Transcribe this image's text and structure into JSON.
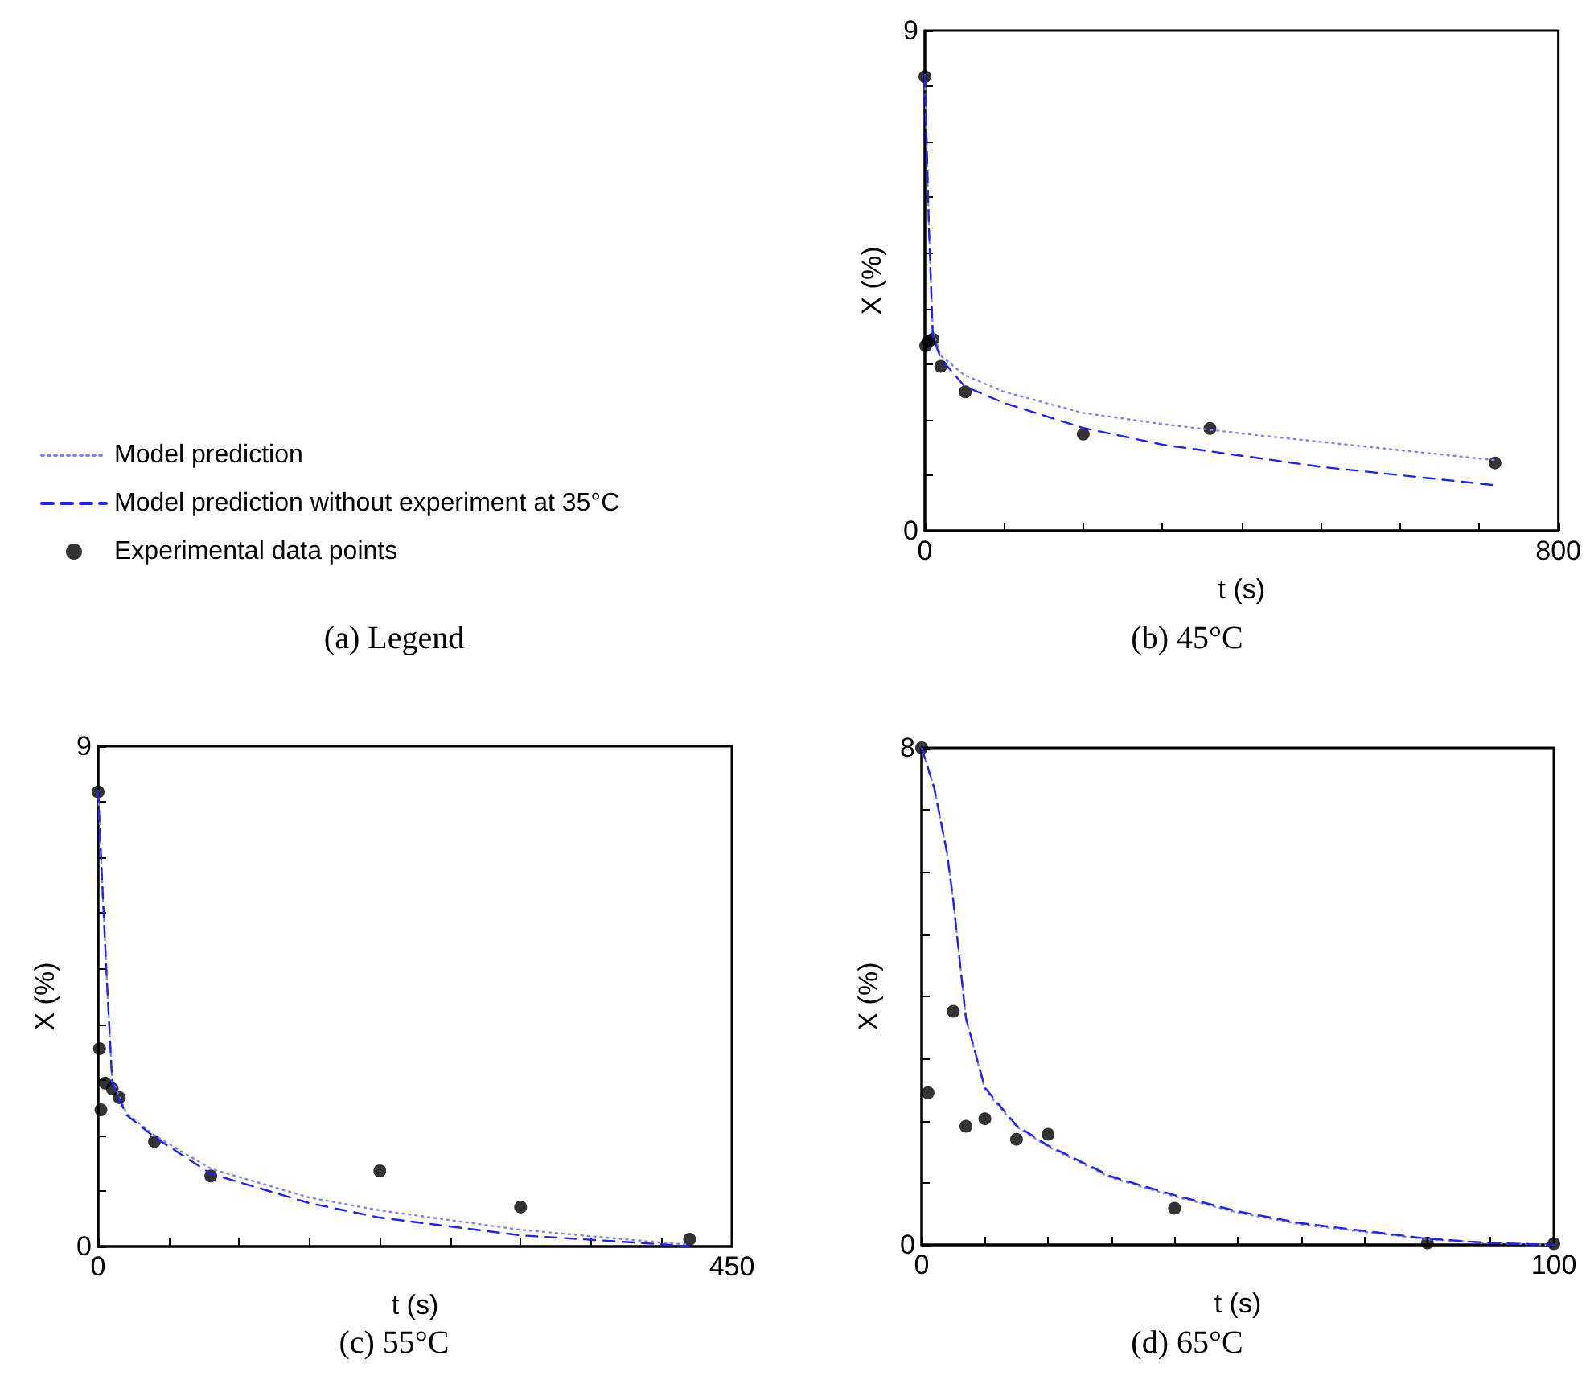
{
  "chart_data": [
    {
      "type": "other",
      "title": "(a) Legend",
      "legend": "left",
      "series": [
        {
          "name": "Model prediction",
          "type": "line",
          "color": "#8080ff",
          "line_style": "dotted",
          "marker": "none"
        },
        {
          "name": "Model prediction without experiment at 35°C",
          "type": "line",
          "color": "#2020ff",
          "line_style": "dashed",
          "marker": "none"
        },
        {
          "name": "Experimental data points",
          "type": "scatter",
          "color": "#000000",
          "marker": "circle"
        }
      ]
    },
    {
      "type": "line",
      "title": "(b) 45°C",
      "xlabel": "t (s)",
      "ylabel": "X (%)",
      "xlim": [
        0,
        800
      ],
      "ylim": [
        0,
        9
      ],
      "grid": false,
      "legend": false,
      "xticks": [
        0,
        {
          "value": 100,
          "label": null
        },
        {
          "value": 200,
          "label": null
        },
        {
          "value": 300,
          "label": null
        },
        {
          "value": 400,
          "label": null
        },
        {
          "value": 500,
          "label": null
        },
        {
          "value": 600,
          "label": null
        },
        {
          "value": 700,
          "label": null
        },
        800
      ],
      "yticks": [
        0,
        {
          "value": 1,
          "label": null
        },
        {
          "value": 2,
          "label": null
        },
        {
          "value": 3,
          "label": null
        },
        {
          "value": 4,
          "label": null
        },
        {
          "value": 5,
          "label": null
        },
        {
          "value": 6,
          "label": null
        },
        {
          "value": 7,
          "label": null
        },
        {
          "value": 8,
          "label": null
        },
        9
      ],
      "series": [
        {
          "type": "line",
          "color": "#8080ff",
          "line_style": "dotted",
          "marker": "none",
          "x": [
            0,
            5,
            10,
            20,
            50,
            100,
            200,
            300,
            400,
            500,
            600,
            720
          ],
          "values": [
            8.2,
            5.5,
            3.6,
            3.15,
            2.8,
            2.5,
            2.12,
            1.92,
            1.75,
            1.6,
            1.45,
            1.27
          ]
        },
        {
          "type": "line",
          "color": "#2020ff",
          "line_style": "dashed",
          "marker": "none",
          "x": [
            0,
            5,
            10,
            20,
            50,
            100,
            200,
            300,
            400,
            500,
            600,
            720
          ],
          "values": [
            8.2,
            5.5,
            3.5,
            3.1,
            2.6,
            2.3,
            1.85,
            1.55,
            1.35,
            1.15,
            1.0,
            0.82
          ]
        },
        {
          "type": "scatter",
          "color": "#000000",
          "marker": "circle",
          "x": [
            0,
            1,
            5,
            10,
            20,
            51,
            200,
            360,
            720
          ],
          "values": [
            8.17,
            3.33,
            3.41,
            3.45,
            2.96,
            2.5,
            1.74,
            1.84,
            1.22
          ]
        }
      ]
    },
    {
      "type": "line",
      "title": "(c) 55°C",
      "xlabel": "t (s)",
      "ylabel": "X (%)",
      "xlim": [
        0,
        450
      ],
      "ylim": [
        0,
        9
      ],
      "grid": false,
      "legend": false,
      "xticks": [
        0,
        {
          "value": 50,
          "label": null
        },
        {
          "value": 100,
          "label": null
        },
        {
          "value": 150,
          "label": null
        },
        {
          "value": 200,
          "label": null
        },
        {
          "value": 250,
          "label": null
        },
        {
          "value": 300,
          "label": null
        },
        {
          "value": 350,
          "label": null
        },
        {
          "value": 400,
          "label": null
        },
        450
      ],
      "yticks": [
        0,
        {
          "value": 1,
          "label": null
        },
        {
          "value": 2,
          "label": null
        },
        {
          "value": 3,
          "label": null
        },
        {
          "value": 4,
          "label": null
        },
        {
          "value": 5,
          "label": null
        },
        {
          "value": 6,
          "label": null
        },
        {
          "value": 7,
          "label": null
        },
        {
          "value": 8,
          "label": null
        },
        9
      ],
      "series": [
        {
          "type": "line",
          "color": "#8080ff",
          "line_style": "dotted",
          "marker": "none",
          "x": [
            0,
            3,
            6,
            10,
            20,
            40,
            80,
            150,
            200,
            300,
            400,
            420
          ],
          "values": [
            8.2,
            6.5,
            4.9,
            3.0,
            2.4,
            2.0,
            1.4,
            0.88,
            0.65,
            0.3,
            0.07,
            0.03
          ]
        },
        {
          "type": "line",
          "color": "#2020ff",
          "line_style": "dashed",
          "marker": "none",
          "x": [
            0,
            3,
            6,
            10,
            20,
            40,
            80,
            150,
            200,
            300,
            400,
            420
          ],
          "values": [
            8.2,
            6.5,
            4.9,
            2.95,
            2.37,
            1.97,
            1.31,
            0.78,
            0.52,
            0.2,
            0.04,
            0.0
          ]
        },
        {
          "type": "scatter",
          "color": "#000000",
          "marker": "circle",
          "x": [
            0,
            1,
            2,
            5,
            10,
            15,
            40,
            80,
            200,
            300,
            420
          ],
          "values": [
            8.18,
            3.56,
            2.46,
            2.94,
            2.84,
            2.68,
            1.89,
            1.27,
            1.36,
            0.71,
            0.13
          ]
        }
      ]
    },
    {
      "type": "line",
      "title": "(d) 65°C",
      "xlabel": "t (s)",
      "ylabel": "X (%)",
      "xlim": [
        0,
        100
      ],
      "ylim": [
        0,
        8
      ],
      "grid": false,
      "legend": false,
      "xticks": [
        0,
        {
          "value": 10,
          "label": null
        },
        {
          "value": 20,
          "label": null
        },
        {
          "value": 30,
          "label": null
        },
        {
          "value": 40,
          "label": null
        },
        {
          "value": 50,
          "label": null
        },
        {
          "value": 60,
          "label": null
        },
        {
          "value": 70,
          "label": null
        },
        {
          "value": 80,
          "label": null
        },
        {
          "value": 90,
          "label": null
        },
        100
      ],
      "yticks": [
        0,
        {
          "value": 1,
          "label": null
        },
        {
          "value": 2,
          "label": null
        },
        {
          "value": 3,
          "label": null
        },
        {
          "value": 4,
          "label": null
        },
        {
          "value": 5,
          "label": null
        },
        {
          "value": 6,
          "label": null
        },
        {
          "value": 7,
          "label": null
        },
        8
      ],
      "series": [
        {
          "type": "line",
          "color": "#8080ff",
          "line_style": "dotted",
          "marker": "none",
          "x": [
            0,
            2,
            4,
            5,
            7,
            10,
            15,
            20,
            30,
            40,
            50,
            60,
            80,
            90,
            100
          ],
          "values": [
            8.0,
            7.35,
            6.32,
            5.54,
            3.65,
            2.5,
            1.9,
            1.58,
            1.08,
            0.78,
            0.52,
            0.33,
            0.09,
            0.03,
            0.0
          ]
        },
        {
          "type": "line",
          "color": "#2020ff",
          "line_style": "dashed",
          "marker": "none",
          "x": [
            0,
            2,
            4,
            5,
            7,
            10,
            15,
            20,
            30,
            40,
            50,
            60,
            80,
            90,
            100
          ],
          "values": [
            8.0,
            7.35,
            6.32,
            5.54,
            3.65,
            2.53,
            1.92,
            1.6,
            1.1,
            0.8,
            0.54,
            0.35,
            0.1,
            0.03,
            0.0
          ]
        },
        {
          "type": "scatter",
          "color": "#000000",
          "marker": "circle",
          "x": [
            0,
            1,
            5,
            7,
            10,
            15,
            20,
            40,
            80,
            100
          ],
          "values": [
            8.0,
            2.45,
            3.76,
            1.91,
            2.03,
            1.7,
            1.78,
            0.59,
            0.03,
            0.02
          ]
        }
      ]
    }
  ]
}
